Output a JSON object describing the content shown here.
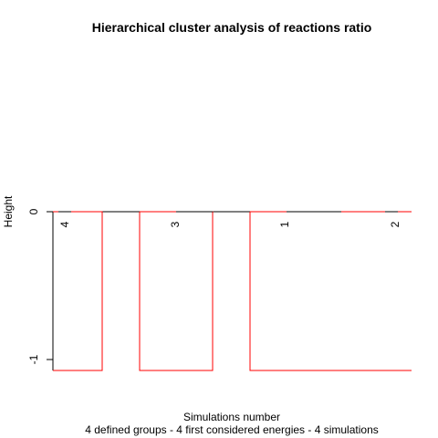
{
  "chart_data": {
    "type": "dendrogram",
    "title": "Hierarchical cluster analysis of reactions ratio",
    "xlabel": "Simulations number",
    "subtitle": "4 defined groups - 4 first considered energies - 4 simulations",
    "ylabel": "Height",
    "y_ticks": [
      "0",
      "-1"
    ],
    "leaves": [
      "4",
      "3",
      "1",
      "2"
    ],
    "leaf_height": 0,
    "base_height": -1.08,
    "group_color": "#ff0000",
    "tree_color": "#000000"
  }
}
